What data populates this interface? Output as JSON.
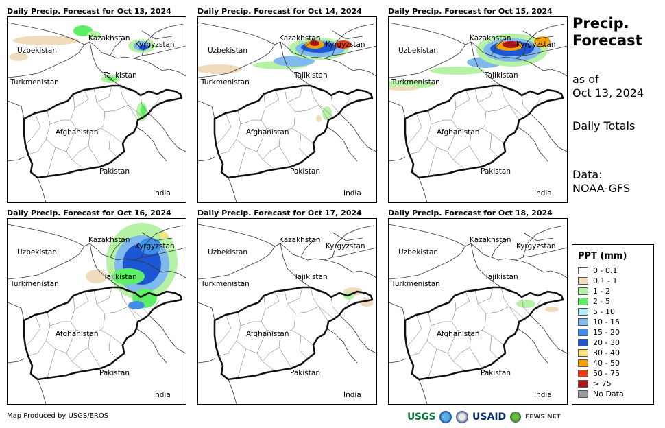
{
  "panels": [
    {
      "title": "Daily Precip. Forecast for Oct 13, 2024"
    },
    {
      "title": "Daily Precip. Forecast for Oct 14, 2024"
    },
    {
      "title": "Daily Precip. Forecast for Oct 15, 2024"
    },
    {
      "title": "Daily Precip. Forecast for Oct 16, 2024"
    },
    {
      "title": "Daily Precip. Forecast for Oct 17, 2024"
    },
    {
      "title": "Daily Precip. Forecast for Oct 18, 2024"
    }
  ],
  "map_labels": {
    "kazakhstan": "Kazakhstan",
    "kyrgyzstan": "Kyrgyzstan",
    "uzbekistan": "Uzbekistan",
    "tajikistan": "Tajikistan",
    "turkmenistan": "Turkmenistan",
    "afghanistan": "Afghanistan",
    "pakistan": "Pakistan",
    "india": "India"
  },
  "side": {
    "title_line1": "Precip.",
    "title_line2": "Forecast",
    "asof_line1": "as of",
    "asof_line2": "Oct 13, 2024",
    "totals": "Daily Totals",
    "data_line1": "Data:",
    "data_line2": "NOAA-GFS"
  },
  "legend": {
    "title": "PPT (mm)",
    "items": [
      {
        "label": "0 - 0.1",
        "color": "#ffffff"
      },
      {
        "label": "0.1 - 1",
        "color": "#eedcbc"
      },
      {
        "label": "1 - 2",
        "color": "#b6f2a6"
      },
      {
        "label": "2 - 5",
        "color": "#5ef064"
      },
      {
        "label": "5 - 10",
        "color": "#aeeef8"
      },
      {
        "label": "10 - 15",
        "color": "#7fb9ee"
      },
      {
        "label": "15 - 20",
        "color": "#3c8ee6"
      },
      {
        "label": "20 - 30",
        "color": "#1d56d2"
      },
      {
        "label": "30 - 40",
        "color": "#fde07c"
      },
      {
        "label": "40 - 50",
        "color": "#f5a000"
      },
      {
        "label": "50 - 75",
        "color": "#e83a12"
      },
      {
        "label": "> 75",
        "color": "#aa1418"
      },
      {
        "label": "No Data",
        "color": "#9a9a9a"
      }
    ]
  },
  "footer": {
    "produced_by": "Map Produced by USGS/EROS"
  },
  "logos": {
    "usgs": "USGS",
    "usaid": "USAID",
    "fews": "FEWS NET"
  }
}
